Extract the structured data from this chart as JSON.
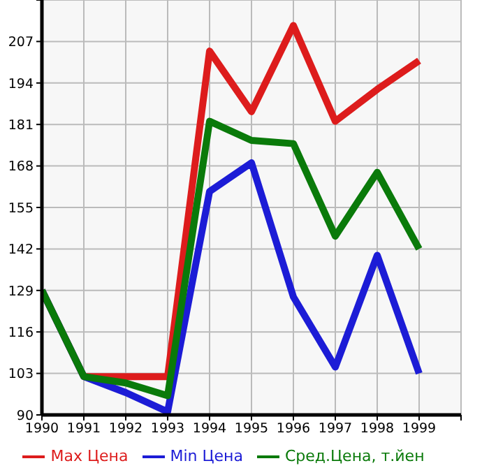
{
  "chart_data": {
    "type": "line",
    "x": [
      1990,
      1991,
      1992,
      1993,
      1994,
      1995,
      1996,
      1997,
      1998,
      1999
    ],
    "series": [
      {
        "name": "Max Цена",
        "color": "#dd1c1c",
        "values": [
          129,
          102,
          102,
          102,
          204,
          185,
          212,
          182,
          192,
          201
        ]
      },
      {
        "name": "Min Цена",
        "color": "#1c1cd6",
        "values": [
          129,
          102,
          97,
          91,
          160,
          169,
          127,
          105,
          140,
          103
        ]
      },
      {
        "name": "Сред.Цена, т.йен",
        "color": "#0a7a0a",
        "values": [
          129,
          102,
          100,
          96,
          182,
          176,
          175,
          146,
          166,
          142
        ]
      }
    ],
    "xlim": [
      1990,
      2000
    ],
    "xticks": [
      1990,
      1991,
      1992,
      1993,
      1994,
      1995,
      1996,
      1997,
      1998,
      1999,
      {
        "value": 2000,
        "label": null
      }
    ],
    "ylim": [
      90,
      220
    ],
    "yticks": [
      90,
      103,
      116,
      129,
      142,
      155,
      168,
      181,
      194,
      207,
      {
        "value": 220,
        "label": null
      }
    ],
    "grid": true,
    "legend": "bottom",
    "marker": "none",
    "line_style": "solid"
  }
}
